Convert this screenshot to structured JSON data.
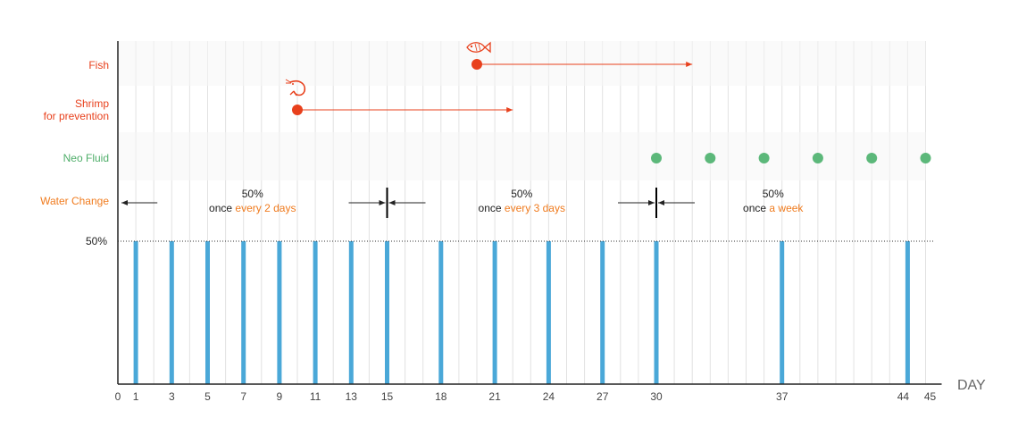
{
  "chart_data": {
    "type": "timeline",
    "x_axis": {
      "label": "DAY",
      "range": [
        0,
        45
      ],
      "ticks": [
        0,
        1,
        3,
        5,
        7,
        9,
        11,
        13,
        15,
        18,
        21,
        24,
        27,
        30,
        37,
        44,
        45
      ],
      "minor_gridline_step": 1
    },
    "rows": [
      {
        "name": "Fish",
        "color": "#e8401c"
      },
      {
        "name": "Shrimp\nfor prevention",
        "color": "#e8401c"
      },
      {
        "name": "Neo Fluid",
        "color": "#4fae6a"
      },
      {
        "name": "Water Change",
        "color": "#f07b1e"
      }
    ],
    "fish": {
      "icon": "fish-icon",
      "start_day": 20,
      "arrow_to_day": 32,
      "color": "#e8401c"
    },
    "shrimp": {
      "icon": "shrimp-icon",
      "start_day": 10,
      "arrow_to_day": 22,
      "color": "#e8401c"
    },
    "neo_fluid": {
      "days": [
        30,
        33,
        36,
        39,
        42,
        45
      ],
      "color": "#5cb87a"
    },
    "water_change": {
      "level_label": "50%",
      "bar_days": [
        1,
        3,
        5,
        7,
        9,
        11,
        13,
        15,
        18,
        21,
        24,
        27,
        30,
        37,
        44
      ],
      "bar_value_percent": 50,
      "bar_color": "#4aa8d8",
      "phases": [
        {
          "percent": "50%",
          "prefix": "once ",
          "highlight": "every 2 days",
          "from_day": 0,
          "to_day": 15
        },
        {
          "percent": "50%",
          "prefix": "once ",
          "highlight": "every 3 days",
          "from_day": 15,
          "to_day": 30
        },
        {
          "percent": "50%",
          "prefix": "once ",
          "highlight": "a week",
          "from_day": 30,
          "to_day": 45
        }
      ],
      "dividers": [
        15,
        30
      ],
      "highlight_color": "#f07b1e"
    }
  }
}
